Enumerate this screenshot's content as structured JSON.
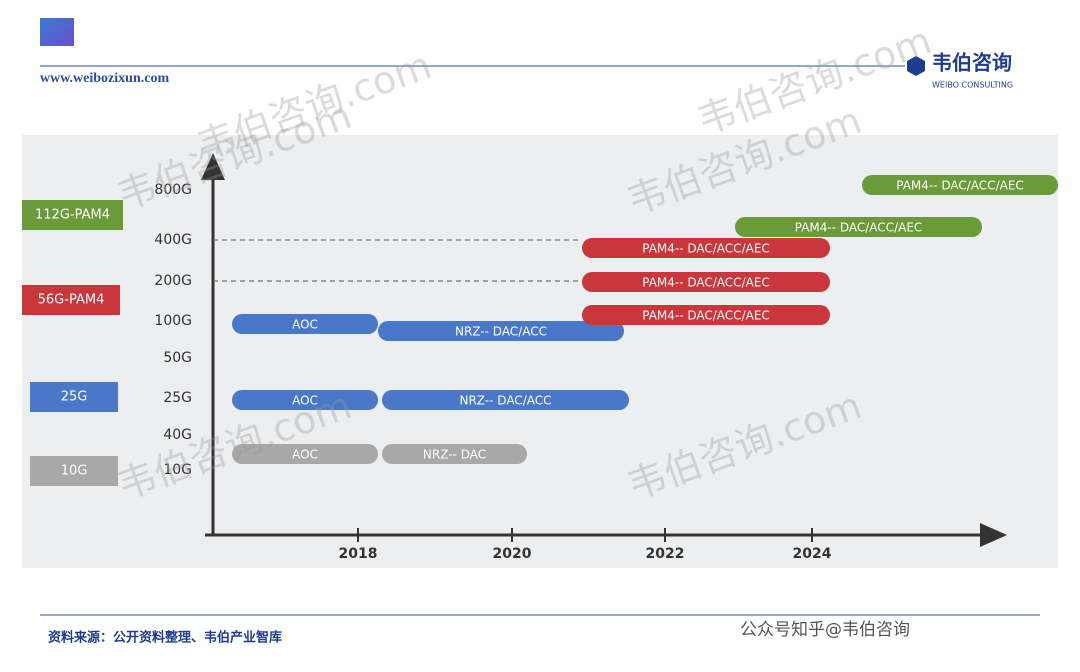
{
  "header": {
    "url": "www.weibozixun.com",
    "brand": "韦伯咨询",
    "brand_en": "WEIBO CONSULTING"
  },
  "watermark": "韦伯咨询.com",
  "legend": [
    "112G-PAM4",
    "56G-PAM4",
    "25G",
    "10G"
  ],
  "y_labels": [
    "800G",
    "400G",
    "200G",
    "100G",
    "50G",
    "25G",
    "40G",
    "10G"
  ],
  "x_labels": [
    "2018",
    "2020",
    "2022",
    "2024"
  ],
  "bars": [
    {
      "label": "AOC"
    },
    {
      "label": "NRZ-- DAC/ACC"
    },
    {
      "label": "AOC"
    },
    {
      "label": "NRZ-- DAC/ACC"
    },
    {
      "label": "AOC"
    },
    {
      "label": "NRZ-- DAC"
    },
    {
      "label": "PAM4-- DAC/ACC/AEC"
    },
    {
      "label": "PAM4-- DAC/ACC/AEC"
    },
    {
      "label": "PAM4-- DAC/ACC/AEC"
    },
    {
      "label": "PAM4-- DAC/ACC/AEC"
    },
    {
      "label": "PAM4-- DAC/ACC/AEC"
    }
  ],
  "footer": {
    "source": "资料来源：公开资料整理、韦伯产业智库",
    "wechat": "公众号知乎@韦伯咨询"
  }
}
